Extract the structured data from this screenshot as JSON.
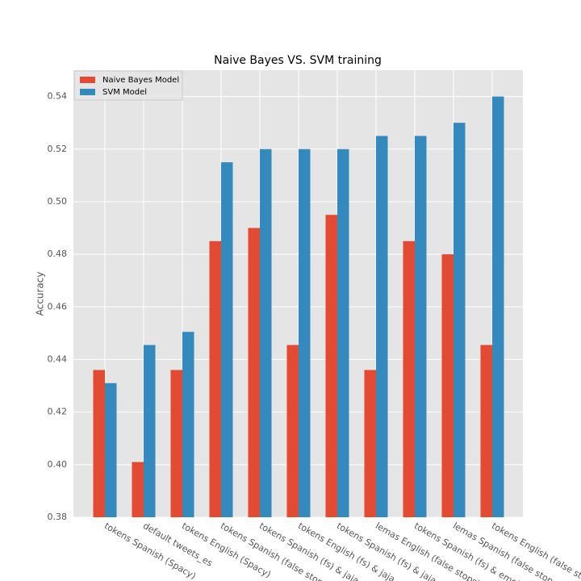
{
  "chart_data": {
    "type": "bar",
    "title": "Naive Bayes VS. SVM training",
    "y_label": "Accuracy",
    "categories": [
      "tokens Spanish (Spacy)",
      "default tweets_es",
      "tokens English (Spacy)",
      "tokens Spanish (false stops)",
      "tokens Spanish (fs) & jaja",
      "tokens English (fs) & jaja",
      "tokens Spanish (fs) & jaja & emojis",
      "lemas English (false stops)",
      "tokens Spanish (fs) & emojis",
      "lemas Spanish (false stops)",
      "tokens English (false stops)"
    ],
    "series": [
      {
        "name": "Naive Bayes Model",
        "color": "#e24a33",
        "values": [
          0.436,
          0.401,
          0.436,
          0.485,
          0.49,
          0.4455,
          0.495,
          0.436,
          0.485,
          0.48,
          0.4455
        ]
      },
      {
        "name": "SVM Model",
        "color": "#348abd",
        "values": [
          0.431,
          0.4455,
          0.4505,
          0.515,
          0.52,
          0.52,
          0.52,
          0.525,
          0.525,
          0.53,
          0.54
        ]
      }
    ],
    "ylim": [
      0.38,
      0.55
    ],
    "yticks": [
      0.38,
      {
        "value": 0.4,
        "label": "0.40"
      },
      0.42,
      0.44,
      0.46,
      0.48,
      {
        "value": 0.5,
        "label": "0.50"
      },
      0.52,
      0.54
    ],
    "grid": true,
    "legend": "upper left"
  }
}
